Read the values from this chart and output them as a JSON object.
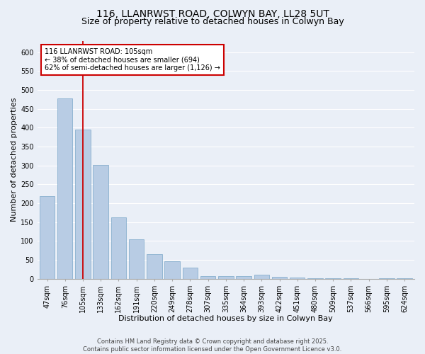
{
  "title1": "116, LLANRWST ROAD, COLWYN BAY, LL28 5UT",
  "title2": "Size of property relative to detached houses in Colwyn Bay",
  "xlabel": "Distribution of detached houses by size in Colwyn Bay",
  "ylabel": "Number of detached properties",
  "categories": [
    "47sqm",
    "76sqm",
    "105sqm",
    "133sqm",
    "162sqm",
    "191sqm",
    "220sqm",
    "249sqm",
    "278sqm",
    "307sqm",
    "335sqm",
    "364sqm",
    "393sqm",
    "422sqm",
    "451sqm",
    "480sqm",
    "509sqm",
    "537sqm",
    "566sqm",
    "595sqm",
    "624sqm"
  ],
  "values": [
    218,
    478,
    394,
    302,
    163,
    105,
    65,
    47,
    30,
    7,
    7,
    7,
    10,
    5,
    4,
    2,
    1,
    1,
    0,
    1,
    2
  ],
  "bar_color": "#b8cce4",
  "bar_edge_color": "#7ba7c9",
  "highlight_index": 2,
  "highlight_line_color": "#cc0000",
  "annotation_line1": "116 LLANRWST ROAD: 105sqm",
  "annotation_line2": "← 38% of detached houses are smaller (694)",
  "annotation_line3": "62% of semi-detached houses are larger (1,126) →",
  "annotation_box_color": "white",
  "annotation_box_edge": "#cc0000",
  "ylim": [
    0,
    630
  ],
  "yticks": [
    0,
    50,
    100,
    150,
    200,
    250,
    300,
    350,
    400,
    450,
    500,
    550,
    600
  ],
  "footer": "Contains HM Land Registry data © Crown copyright and database right 2025.\nContains public sector information licensed under the Open Government Licence v3.0.",
  "bg_color": "#eaeff7",
  "plot_bg_color": "#eaeff7",
  "grid_color": "white",
  "title1_fontsize": 10,
  "title2_fontsize": 9,
  "xlabel_fontsize": 8,
  "ylabel_fontsize": 8,
  "tick_fontsize": 7,
  "annotation_fontsize": 7,
  "footer_fontsize": 6
}
